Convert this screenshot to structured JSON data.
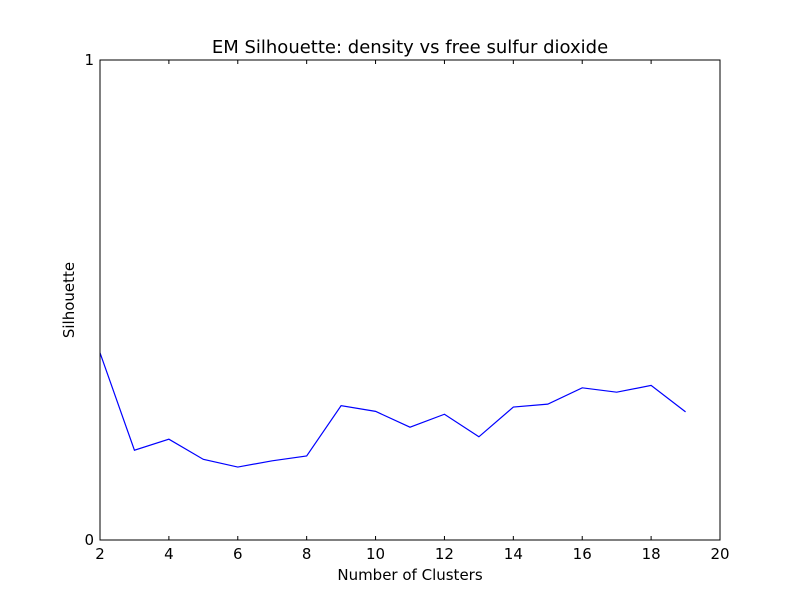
{
  "chart_data": {
    "type": "line",
    "title": "EM Silhouette: density vs free sulfur dioxide",
    "xlabel": "Number of Clusters",
    "ylabel": "Silhouette",
    "xlim": [
      2,
      20
    ],
    "ylim": [
      0,
      1
    ],
    "x_ticks": [
      "2",
      "4",
      "6",
      "8",
      "10",
      "12",
      "14",
      "16",
      "18",
      "20"
    ],
    "y_ticks": [
      "0",
      "1"
    ],
    "grid": false,
    "series": [
      {
        "color": "#0000ff",
        "x": [
          2,
          3,
          4,
          5,
          6,
          7,
          8,
          9,
          10,
          11,
          12,
          13,
          14,
          15,
          16,
          17,
          18,
          19
        ],
        "values": [
          0.39,
          0.187,
          0.21,
          0.168,
          0.152,
          0.165,
          0.175,
          0.28,
          0.268,
          0.235,
          0.262,
          0.215,
          0.277,
          0.283,
          0.317,
          0.308,
          0.322,
          0.267
        ]
      }
    ]
  }
}
